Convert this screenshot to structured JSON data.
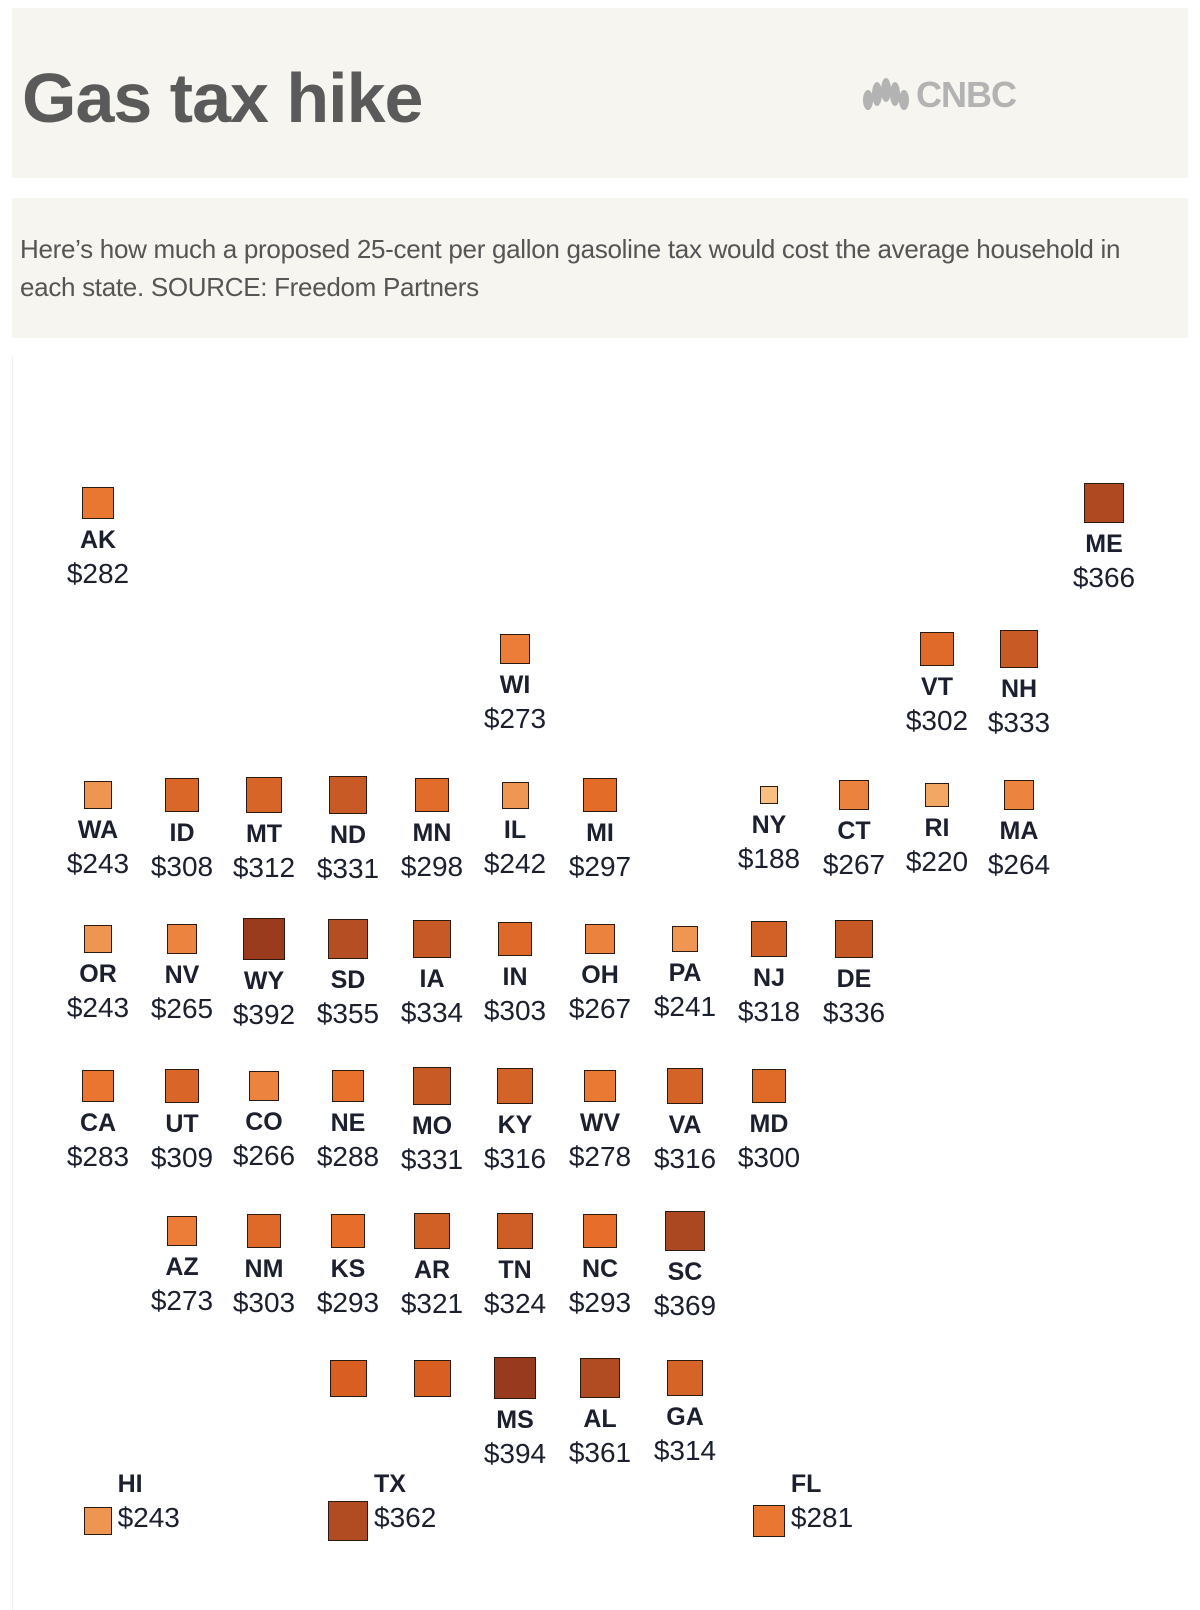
{
  "header": {
    "title": "Gas tax hike",
    "logo_text": "CNBC"
  },
  "subtitle": "Here’s how much a proposed 25-cent per gallon gasoline tax would cost the average household in each state. SOURCE: Freedom Partners",
  "chart_data": {
    "type": "tile-map",
    "title": "Gas tax hike",
    "value_format": "$",
    "color_scale": {
      "low": "#f7c080",
      "mid": "#e8702a",
      "high": "#983a1e"
    },
    "states": [
      {
        "state": "AK",
        "value": 282
      },
      {
        "state": "ME",
        "value": 366
      },
      {
        "state": "WI",
        "value": 273
      },
      {
        "state": "VT",
        "value": 302
      },
      {
        "state": "NH",
        "value": 333
      },
      {
        "state": "WA",
        "value": 243
      },
      {
        "state": "ID",
        "value": 308
      },
      {
        "state": "MT",
        "value": 312
      },
      {
        "state": "ND",
        "value": 331
      },
      {
        "state": "MN",
        "value": 298
      },
      {
        "state": "IL",
        "value": 242
      },
      {
        "state": "MI",
        "value": 297
      },
      {
        "state": "NY",
        "value": 188
      },
      {
        "state": "CT",
        "value": 267
      },
      {
        "state": "RI",
        "value": 220
      },
      {
        "state": "MA",
        "value": 264
      },
      {
        "state": "OR",
        "value": 243
      },
      {
        "state": "NV",
        "value": 265
      },
      {
        "state": "WY",
        "value": 392
      },
      {
        "state": "SD",
        "value": 355
      },
      {
        "state": "IA",
        "value": 334
      },
      {
        "state": "IN",
        "value": 303
      },
      {
        "state": "OH",
        "value": 267
      },
      {
        "state": "PA",
        "value": 241
      },
      {
        "state": "NJ",
        "value": 318
      },
      {
        "state": "DE",
        "value": 336
      },
      {
        "state": "CA",
        "value": 283
      },
      {
        "state": "UT",
        "value": 309
      },
      {
        "state": "CO",
        "value": 266
      },
      {
        "state": "NE",
        "value": 288
      },
      {
        "state": "MO",
        "value": 331
      },
      {
        "state": "KY",
        "value": 316
      },
      {
        "state": "WV",
        "value": 278
      },
      {
        "state": "VA",
        "value": 316
      },
      {
        "state": "MD",
        "value": 300
      },
      {
        "state": "AZ",
        "value": 273
      },
      {
        "state": "NM",
        "value": 303
      },
      {
        "state": "KS",
        "value": 293
      },
      {
        "state": "AR",
        "value": 321
      },
      {
        "state": "TN",
        "value": 324
      },
      {
        "state": "NC",
        "value": 293
      },
      {
        "state": "SC",
        "value": 369
      },
      {
        "state": "",
        "value": null,
        "color": "#d85e22"
      },
      {
        "state": "",
        "value": null,
        "color": "#d85e22"
      },
      {
        "state": "MS",
        "value": 394
      },
      {
        "state": "AL",
        "value": 361
      },
      {
        "state": "GA",
        "value": 314
      },
      {
        "state": "HI",
        "value": 243
      },
      {
        "state": "TX",
        "value": 362
      },
      {
        "state": "FL",
        "value": 281
      }
    ]
  }
}
